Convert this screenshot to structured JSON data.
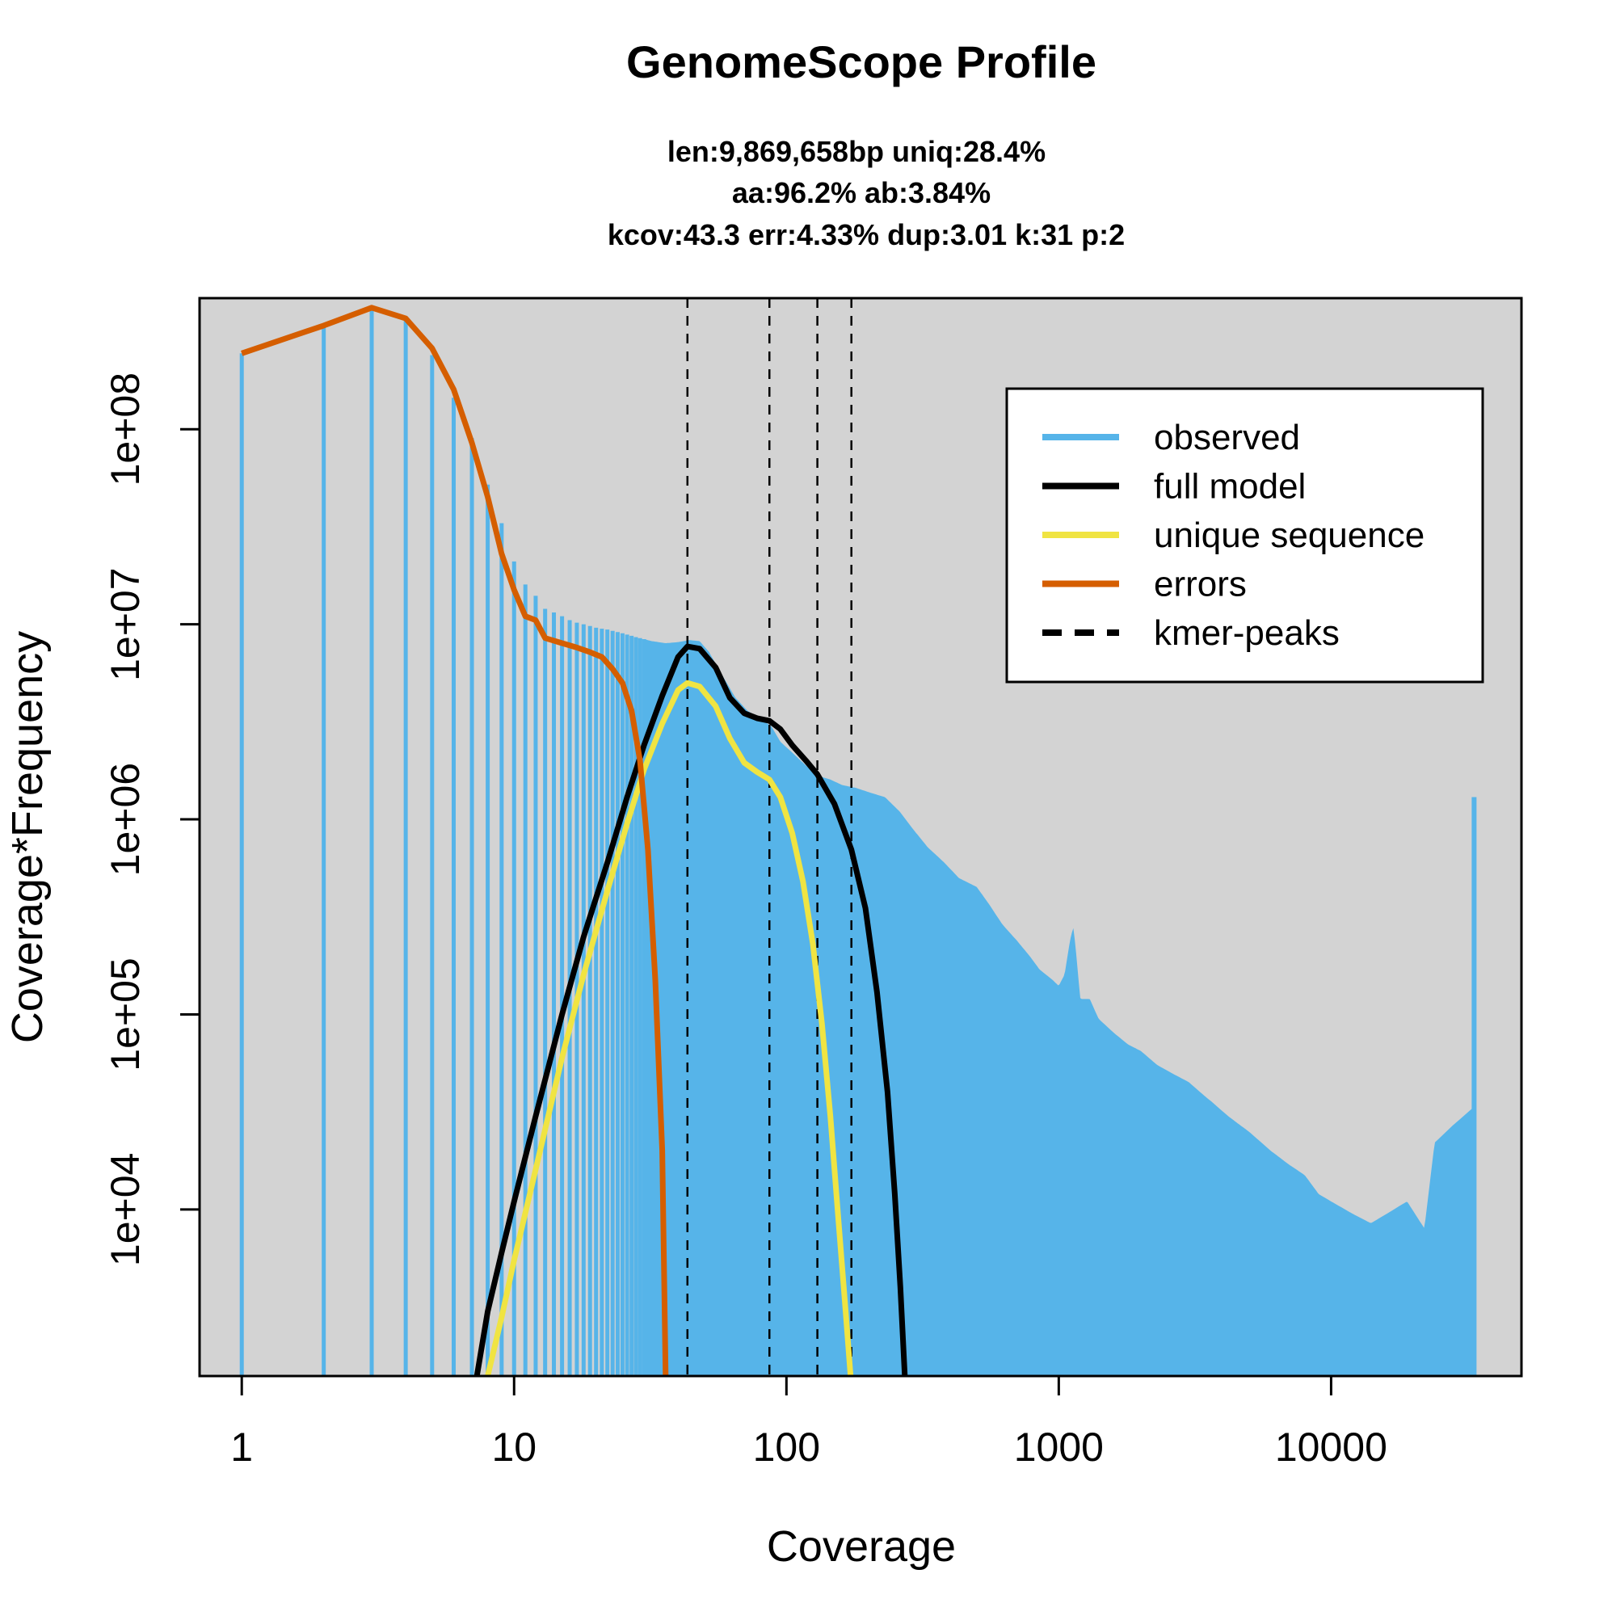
{
  "chart_data": {
    "type": "area",
    "title": "GenomeScope Profile",
    "subtitle_lines": [
      "len:9,869,658bp uniq:28.4%",
      "aa:96.2% ab:3.84%",
      "kcov:43.3 err:4.33%  dup:3.01  k:31 p:2"
    ],
    "xlabel": "Coverage",
    "ylabel": "Coverage*Frequency",
    "xscale": "log",
    "yscale": "log",
    "xlim": [
      0.7,
      50000
    ],
    "ylim": [
      1400,
      470000000
    ],
    "x_ticks": [
      1,
      10,
      100,
      1000,
      10000
    ],
    "x_tick_labels": [
      "1",
      "10",
      "100",
      "1000",
      "10000"
    ],
    "y_ticks": [
      10000,
      100000,
      1000000,
      10000000,
      100000000
    ],
    "y_tick_labels": [
      "1e+04",
      "1e+05",
      "1e+06",
      "1e+07",
      "1e+08"
    ],
    "background": "#d3d3d3",
    "legend_position": "top-right",
    "kmer_peaks": [
      43.3,
      86.6,
      129.9,
      173.2
    ],
    "series": [
      {
        "name": "observed",
        "color": "#56b4e9",
        "style": "histogram",
        "points": [
          [
            1,
            245000000
          ],
          [
            2,
            340000000
          ],
          [
            3,
            420000000
          ],
          [
            4,
            370000000
          ],
          [
            5,
            240000000
          ],
          [
            6,
            145000000
          ],
          [
            7,
            90000000
          ],
          [
            8,
            52000000
          ],
          [
            9,
            33000000
          ],
          [
            10,
            21000000
          ],
          [
            11,
            16000000
          ],
          [
            12,
            14000000
          ],
          [
            13,
            12000000
          ],
          [
            14,
            11500000
          ],
          [
            15,
            11000000
          ],
          [
            16,
            10500000
          ],
          [
            17,
            10200000
          ],
          [
            18,
            10000000
          ],
          [
            19,
            9800000
          ],
          [
            20,
            9600000
          ],
          [
            22,
            9400000
          ],
          [
            25,
            9000000
          ],
          [
            28,
            8600000
          ],
          [
            32,
            8200000
          ],
          [
            36,
            8000000
          ],
          [
            40,
            8100000
          ],
          [
            44,
            8300000
          ],
          [
            48,
            8200000
          ],
          [
            52,
            7200000
          ],
          [
            58,
            5500000
          ],
          [
            65,
            4200000
          ],
          [
            72,
            3600000
          ],
          [
            80,
            3300000
          ],
          [
            88,
            3000000
          ],
          [
            95,
            2500000
          ],
          [
            105,
            2200000
          ],
          [
            115,
            1950000
          ],
          [
            125,
            1750000
          ],
          [
            135,
            1650000
          ],
          [
            145,
            1600000
          ],
          [
            160,
            1500000
          ],
          [
            180,
            1450000
          ],
          [
            200,
            1380000
          ],
          [
            230,
            1300000
          ],
          [
            260,
            1100000
          ],
          [
            290,
            900000
          ],
          [
            330,
            720000
          ],
          [
            380,
            600000
          ],
          [
            430,
            500000
          ],
          [
            500,
            450000
          ],
          [
            560,
            360000
          ],
          [
            620,
            290000
          ],
          [
            700,
            240000
          ],
          [
            780,
            200000
          ],
          [
            850,
            170000
          ],
          [
            950,
            150000
          ],
          [
            1000,
            140000
          ],
          [
            1050,
            160000
          ],
          [
            1100,
            240000
          ],
          [
            1130,
            280000
          ],
          [
            1150,
            230000
          ],
          [
            1200,
            120000
          ],
          [
            1300,
            120000
          ],
          [
            1400,
            95000
          ],
          [
            1600,
            80000
          ],
          [
            1800,
            70000
          ],
          [
            2000,
            65000
          ],
          [
            2300,
            55000
          ],
          [
            2600,
            50000
          ],
          [
            3000,
            45000
          ],
          [
            3300,
            40000
          ],
          [
            3700,
            35000
          ],
          [
            4200,
            30000
          ],
          [
            5000,
            25000
          ],
          [
            6000,
            20000
          ],
          [
            7000,
            17000
          ],
          [
            8000,
            15000
          ],
          [
            9000,
            12000
          ],
          [
            10000,
            11000
          ],
          [
            12000,
            9500
          ],
          [
            14000,
            8500
          ],
          [
            16000,
            9500
          ],
          [
            19000,
            11000
          ],
          [
            22000,
            8000
          ],
          [
            24000,
            22000
          ],
          [
            28000,
            27000
          ],
          [
            33000,
            33000
          ],
          [
            33500,
            1300000
          ]
        ]
      },
      {
        "name": "full model",
        "color": "#000000",
        "style": "line",
        "points": [
          [
            7.3,
            1400
          ],
          [
            8,
            3000
          ],
          [
            9,
            6000
          ],
          [
            10,
            11000
          ],
          [
            12,
            30000
          ],
          [
            15,
            100000
          ],
          [
            18,
            250000
          ],
          [
            22,
            600000
          ],
          [
            26,
            1300000
          ],
          [
            30,
            2400000
          ],
          [
            35,
            4300000
          ],
          [
            40,
            6800000
          ],
          [
            43.3,
            7700000
          ],
          [
            48,
            7500000
          ],
          [
            55,
            6000000
          ],
          [
            62,
            4200000
          ],
          [
            70,
            3500000
          ],
          [
            78,
            3300000
          ],
          [
            86.6,
            3200000
          ],
          [
            95,
            2900000
          ],
          [
            105,
            2400000
          ],
          [
            118,
            2000000
          ],
          [
            129.9,
            1700000
          ],
          [
            150,
            1200000
          ],
          [
            173.2,
            700000
          ],
          [
            195,
            350000
          ],
          [
            215,
            130000
          ],
          [
            235,
            40000
          ],
          [
            250,
            12000
          ],
          [
            262,
            4000
          ],
          [
            272,
            1400
          ]
        ]
      },
      {
        "name": "unique sequence",
        "color": "#f0e442",
        "style": "line",
        "points": [
          [
            8,
            1400
          ],
          [
            9,
            2800
          ],
          [
            10,
            5500
          ],
          [
            12,
            16000
          ],
          [
            15,
            60000
          ],
          [
            18,
            160000
          ],
          [
            22,
            430000
          ],
          [
            26,
            950000
          ],
          [
            30,
            1800000
          ],
          [
            35,
            3100000
          ],
          [
            40,
            4600000
          ],
          [
            43.3,
            5000000
          ],
          [
            48,
            4800000
          ],
          [
            55,
            3800000
          ],
          [
            62,
            2600000
          ],
          [
            70,
            1950000
          ],
          [
            78,
            1750000
          ],
          [
            86.6,
            1600000
          ],
          [
            95,
            1300000
          ],
          [
            105,
            850000
          ],
          [
            115,
            480000
          ],
          [
            125,
            230000
          ],
          [
            135,
            90000
          ],
          [
            145,
            30000
          ],
          [
            155,
            9000
          ],
          [
            165,
            3000
          ],
          [
            172,
            1400
          ]
        ]
      },
      {
        "name": "errors",
        "color": "#d55e00",
        "style": "line",
        "points": [
          [
            1,
            245000000
          ],
          [
            2,
            340000000
          ],
          [
            3,
            420000000
          ],
          [
            4,
            370000000
          ],
          [
            5,
            260000000
          ],
          [
            6,
            160000000
          ],
          [
            7,
            85000000
          ],
          [
            8,
            45000000
          ],
          [
            9,
            23000000
          ],
          [
            10,
            15000000
          ],
          [
            11,
            11000000
          ],
          [
            12,
            10500000
          ],
          [
            13,
            8500000
          ],
          [
            15,
            8000000
          ],
          [
            17,
            7600000
          ],
          [
            19,
            7200000
          ],
          [
            21,
            6800000
          ],
          [
            23,
            5900000
          ],
          [
            25,
            5000000
          ],
          [
            27,
            3600000
          ],
          [
            29,
            2000000
          ],
          [
            31,
            700000
          ],
          [
            33,
            150000
          ],
          [
            35,
            20000
          ],
          [
            36,
            1400
          ]
        ]
      }
    ],
    "legend": [
      {
        "label": "observed",
        "color": "#56b4e9",
        "dashed": false
      },
      {
        "label": "full model",
        "color": "#000000",
        "dashed": false
      },
      {
        "label": "unique sequence",
        "color": "#f0e442",
        "dashed": false
      },
      {
        "label": "errors",
        "color": "#d55e00",
        "dashed": false
      },
      {
        "label": "kmer-peaks",
        "color": "#000000",
        "dashed": true
      }
    ]
  }
}
